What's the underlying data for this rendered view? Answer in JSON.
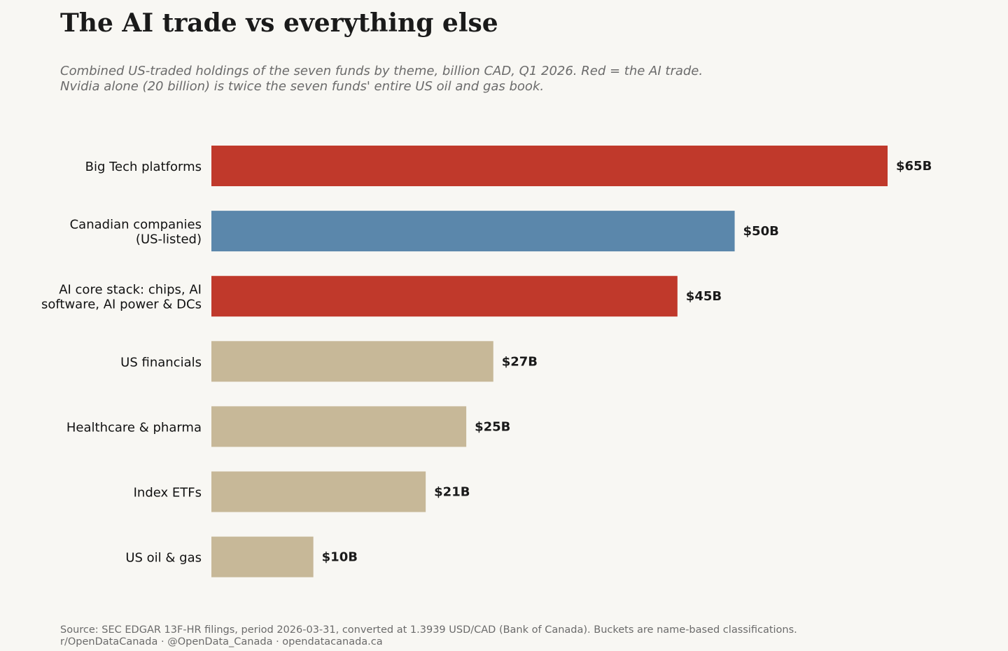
{
  "title": "The AI trade vs everything else",
  "subtitle": [
    "Combined US-traded holdings of the seven funds by theme, billion CAD, Q1 2026. Red = the AI trade.",
    "Nvidia alone (20 billion) is twice the seven funds' entire US oil and gas book."
  ],
  "source": [
    "Source: SEC EDGAR 13F-HR filings, period 2026-03-31, converted at 1.3939 USD/CAD (Bank of Canada). Buckets are name-based classifications.",
    "r/OpenDataCanada · @OpenData_Canada · opendatacanada.ca"
  ],
  "colors": {
    "ai": "#c0392b",
    "canadian": "#5b87ab",
    "other": "#c7b898"
  },
  "chart_data": {
    "type": "bar",
    "orientation": "horizontal",
    "categories": [
      [
        "Big Tech platforms"
      ],
      [
        "Canadian companies",
        "(US-listed)"
      ],
      [
        "AI core stack: chips, AI",
        "software, AI power & DCs"
      ],
      [
        "US financials"
      ],
      [
        "Healthcare & pharma"
      ],
      [
        "Index ETFs"
      ],
      [
        "US oil & gas"
      ]
    ],
    "values": [
      65,
      50.3,
      44.8,
      27.1,
      24.5,
      20.6,
      9.8
    ],
    "data_labels": [
      "$65B",
      "$50B",
      "$45B",
      "$27B",
      "$25B",
      "$21B",
      "$10B"
    ],
    "color_groups": [
      "ai",
      "canadian",
      "ai",
      "other",
      "other",
      "other",
      "other"
    ],
    "unit": "billion CAD",
    "xlim": [
      0,
      65
    ],
    "grid": false,
    "legend": "none"
  }
}
